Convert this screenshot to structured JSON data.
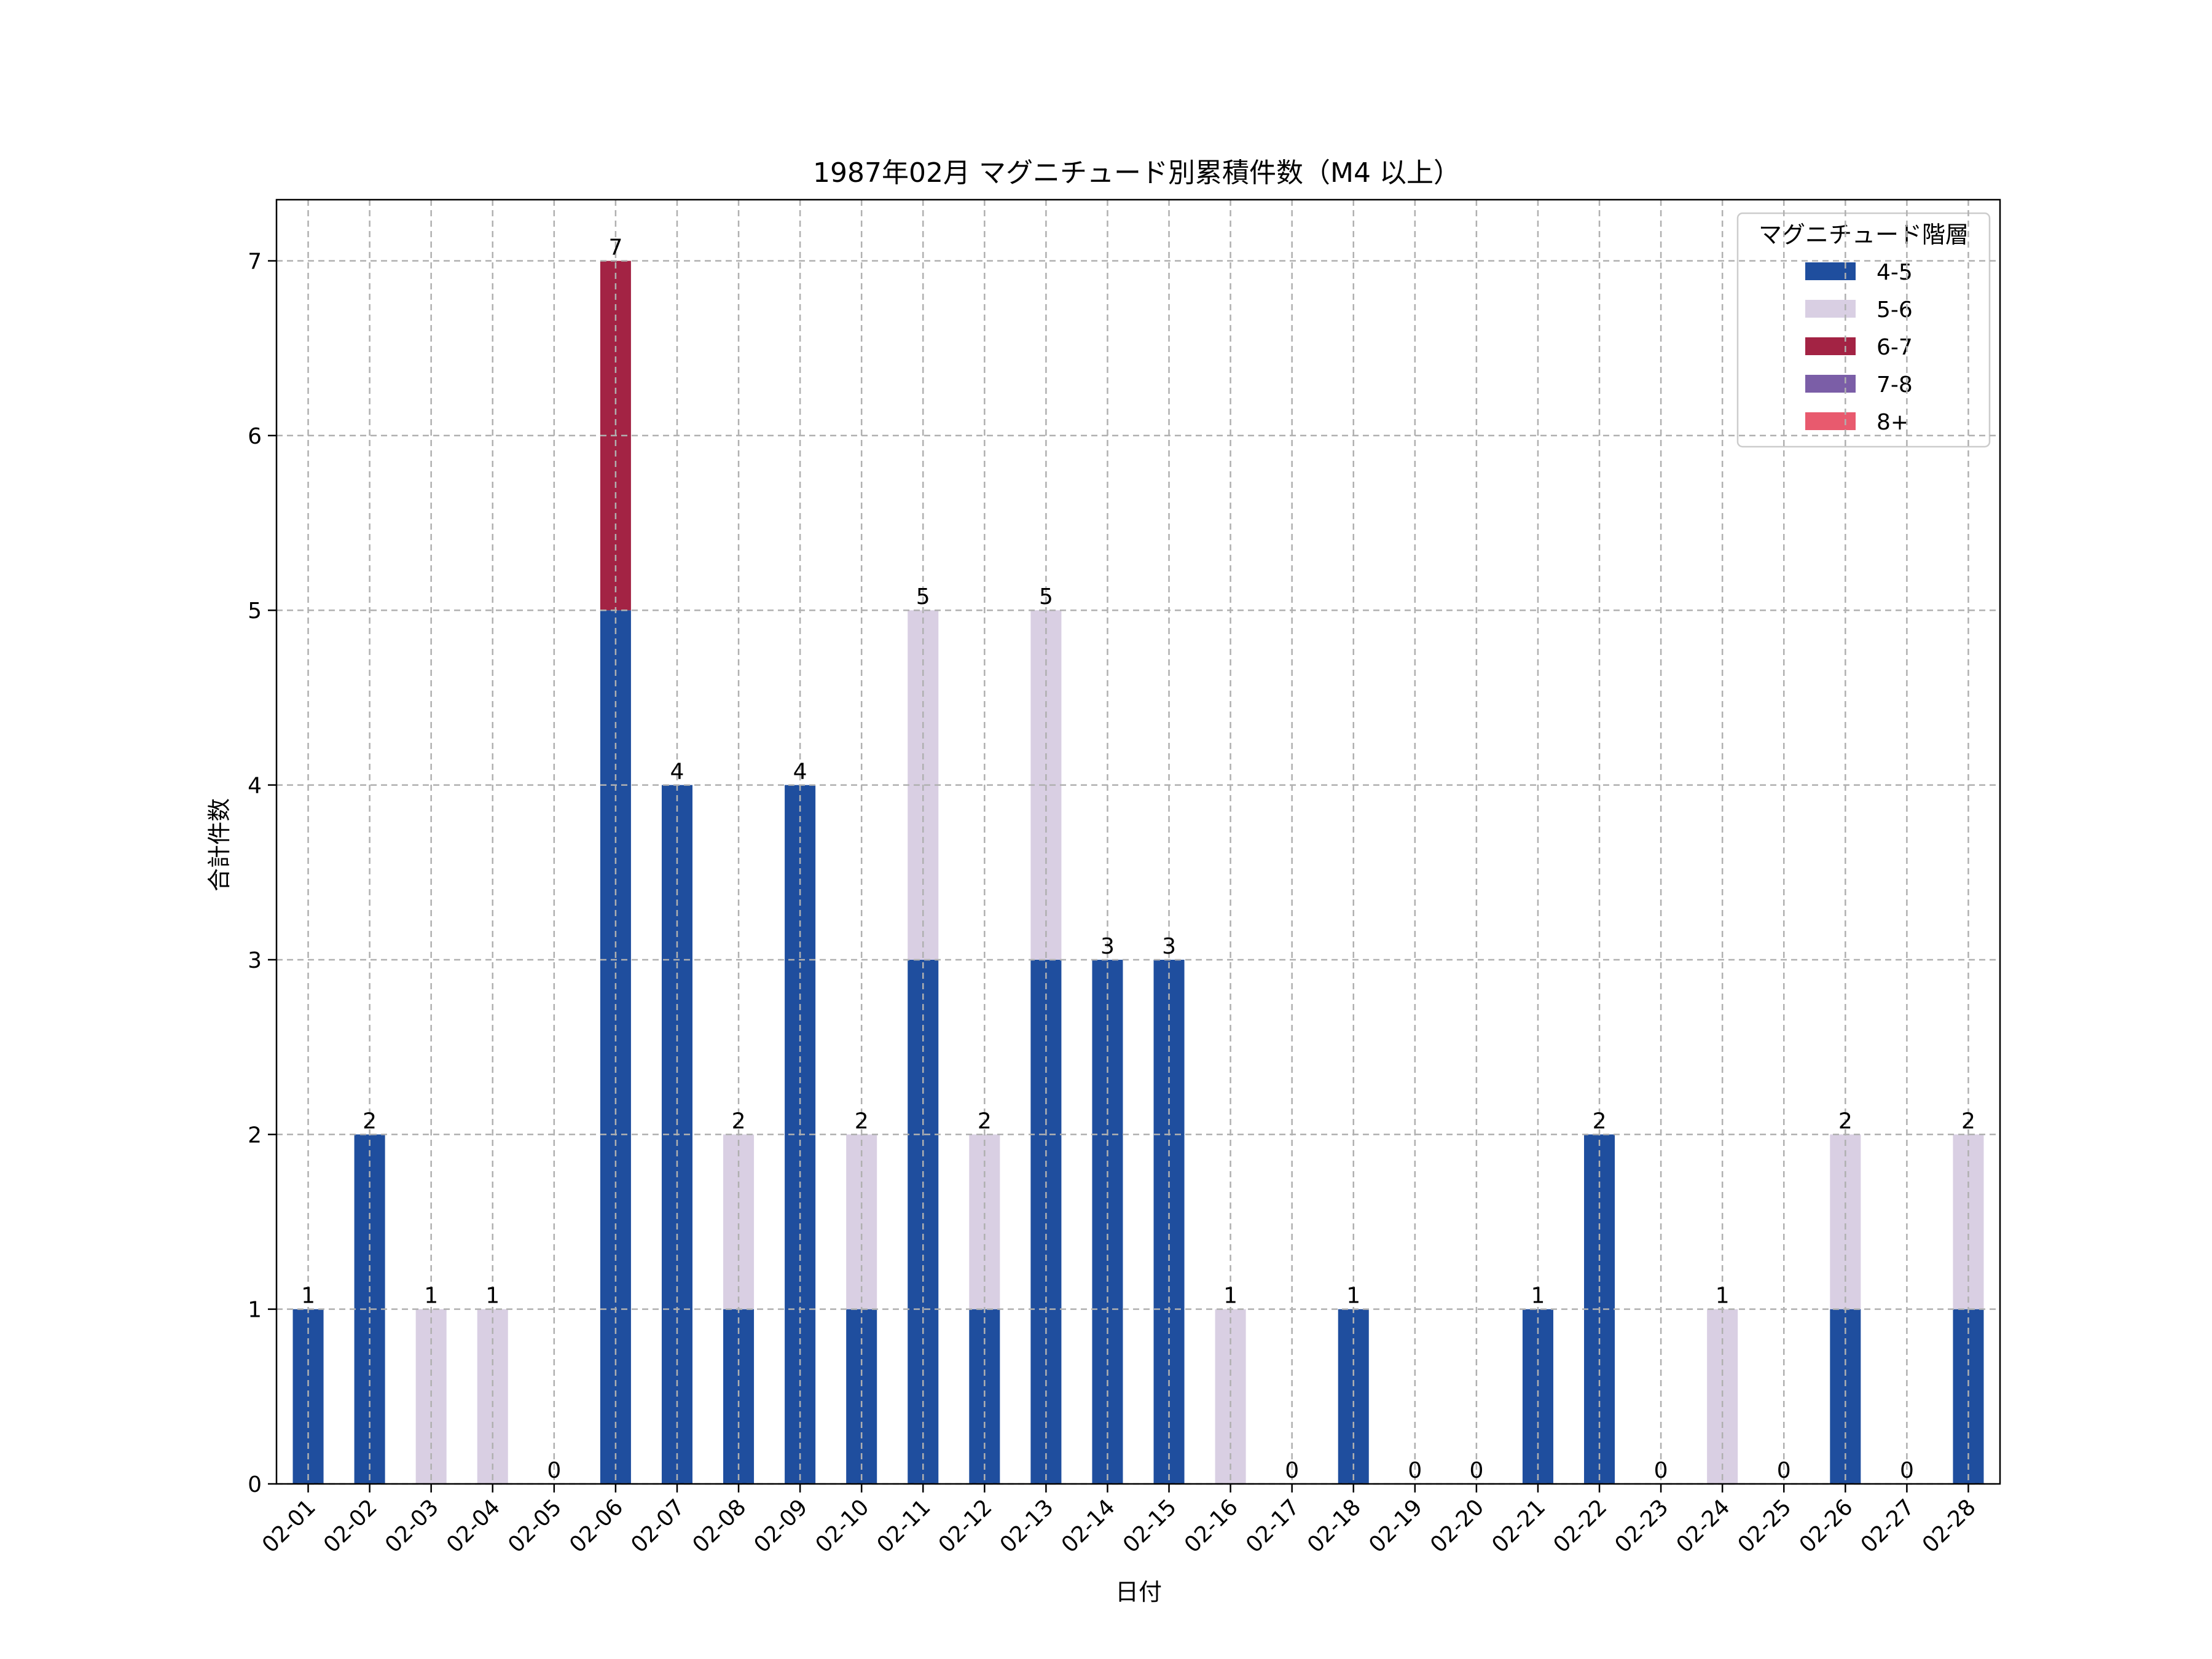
{
  "chart_data": {
    "type": "bar",
    "stacked": true,
    "title": "1987年02月 マグニチュード別累積件数（M4 以上）",
    "xlabel": "日付",
    "ylabel": "合計件数",
    "ylim": [
      0,
      7.35
    ],
    "yticks": [
      0,
      1,
      2,
      3,
      4,
      5,
      6,
      7
    ],
    "grid": true,
    "legend_title": "マグニチュード階層",
    "legend_position": "top-right",
    "categories": [
      "02-01",
      "02-02",
      "02-03",
      "02-04",
      "02-05",
      "02-06",
      "02-07",
      "02-08",
      "02-09",
      "02-10",
      "02-11",
      "02-12",
      "02-13",
      "02-14",
      "02-15",
      "02-16",
      "02-17",
      "02-18",
      "02-19",
      "02-20",
      "02-21",
      "02-22",
      "02-23",
      "02-24",
      "02-25",
      "02-26",
      "02-27",
      "02-28"
    ],
    "series": [
      {
        "name": "4-5",
        "color": "#1f4e9e",
        "values": [
          1,
          2,
          0,
          0,
          0,
          5,
          4,
          1,
          4,
          1,
          3,
          1,
          3,
          3,
          3,
          0,
          0,
          1,
          0,
          0,
          1,
          2,
          0,
          0,
          0,
          1,
          0,
          1
        ]
      },
      {
        "name": "5-6",
        "color": "#d9cfe3",
        "values": [
          0,
          0,
          1,
          1,
          0,
          0,
          0,
          1,
          0,
          1,
          2,
          1,
          2,
          0,
          0,
          1,
          0,
          0,
          0,
          0,
          0,
          0,
          0,
          1,
          0,
          1,
          0,
          1
        ]
      },
      {
        "name": "6-7",
        "color": "#a32344",
        "values": [
          0,
          0,
          0,
          0,
          0,
          2,
          0,
          0,
          0,
          0,
          0,
          0,
          0,
          0,
          0,
          0,
          0,
          0,
          0,
          0,
          0,
          0,
          0,
          0,
          0,
          0,
          0,
          0
        ]
      },
      {
        "name": "7-8",
        "color": "#7b5ea7",
        "values": [
          0,
          0,
          0,
          0,
          0,
          0,
          0,
          0,
          0,
          0,
          0,
          0,
          0,
          0,
          0,
          0,
          0,
          0,
          0,
          0,
          0,
          0,
          0,
          0,
          0,
          0,
          0,
          0
        ]
      },
      {
        "name": "8+",
        "color": "#e85a6e",
        "values": [
          0,
          0,
          0,
          0,
          0,
          0,
          0,
          0,
          0,
          0,
          0,
          0,
          0,
          0,
          0,
          0,
          0,
          0,
          0,
          0,
          0,
          0,
          0,
          0,
          0,
          0,
          0,
          0
        ]
      }
    ],
    "totals": [
      1,
      2,
      1,
      1,
      0,
      7,
      4,
      2,
      4,
      2,
      5,
      2,
      5,
      3,
      3,
      1,
      0,
      1,
      0,
      0,
      1,
      2,
      0,
      1,
      0,
      2,
      0,
      2
    ]
  }
}
